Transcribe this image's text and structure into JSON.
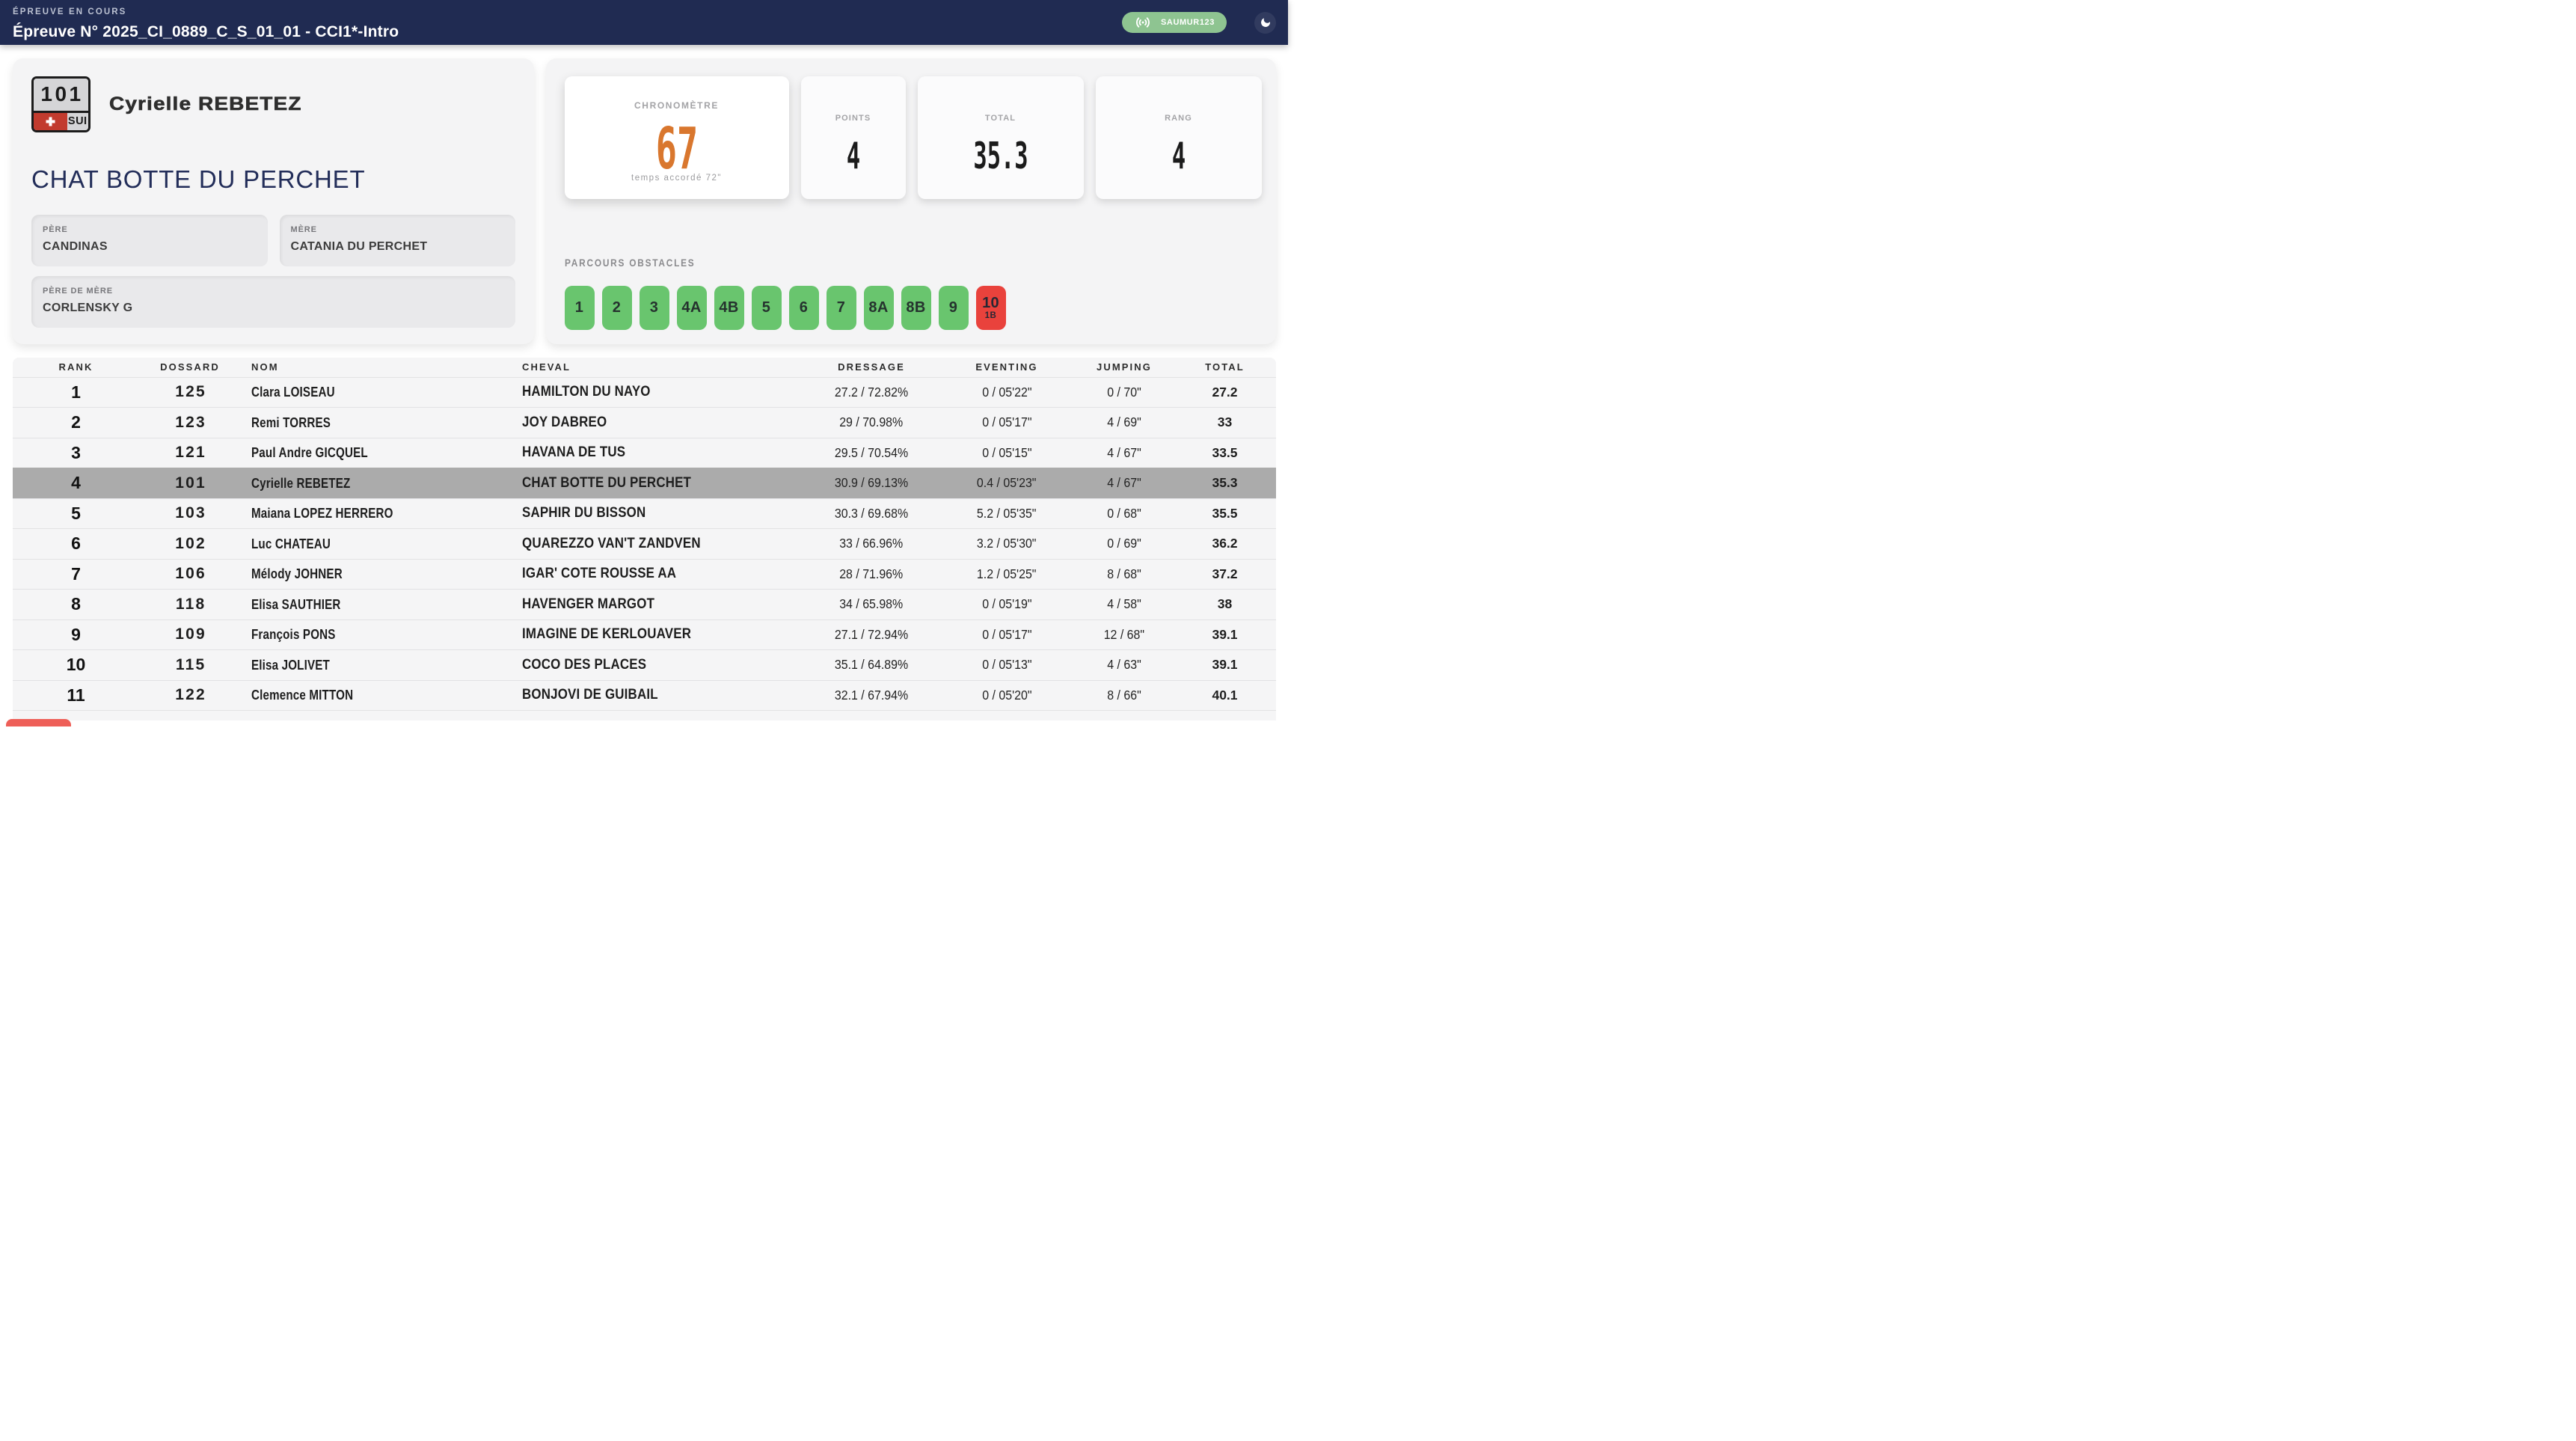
{
  "header": {
    "status_label": "ÉPREUVE EN COURS",
    "title": "Épreuve N° 2025_CI_0889_C_S_01_01 - CCI1*-Intro",
    "live_badge": "SAUMUR123"
  },
  "rider_card": {
    "bib": "101",
    "country": "SUI",
    "rider": "Cyrielle REBETEZ",
    "horse": "CHAT BOTTE DU PERCHET",
    "pedigree": [
      {
        "label": "PÈRE",
        "value": "CANDINAS"
      },
      {
        "label": "MÈRE",
        "value": "CATANIA DU PERCHET"
      },
      {
        "label": "PÈRE DE MÈRE",
        "value": "CORLENSKY G"
      }
    ]
  },
  "score_card": {
    "chrono": {
      "label": "CHRONOMÈTRE",
      "value": "67",
      "sub": "temps accordé 72\""
    },
    "stats": [
      {
        "label": "POINTS",
        "value": "4"
      },
      {
        "label": "TOTAL",
        "value": "35.3"
      },
      {
        "label": "RANG",
        "value": "4"
      }
    ],
    "obstacles_label": "PARCOURS OBSTACLES",
    "obstacles": [
      {
        "label": "1",
        "sub": "",
        "status": "clear"
      },
      {
        "label": "2",
        "sub": "",
        "status": "clear"
      },
      {
        "label": "3",
        "sub": "",
        "status": "clear"
      },
      {
        "label": "4A",
        "sub": "",
        "status": "clear"
      },
      {
        "label": "4B",
        "sub": "",
        "status": "clear"
      },
      {
        "label": "5",
        "sub": "",
        "status": "clear"
      },
      {
        "label": "6",
        "sub": "",
        "status": "clear"
      },
      {
        "label": "7",
        "sub": "",
        "status": "clear"
      },
      {
        "label": "8A",
        "sub": "",
        "status": "clear"
      },
      {
        "label": "8B",
        "sub": "",
        "status": "clear"
      },
      {
        "label": "9",
        "sub": "",
        "status": "clear"
      },
      {
        "label": "10",
        "sub": "1B",
        "status": "fault"
      }
    ],
    "colors": {
      "clear": "#69c56e",
      "fault": "#e9423c",
      "chrono_value": "#d9772e"
    }
  },
  "table": {
    "columns": [
      "RANK",
      "DOSSARD",
      "NOM",
      "CHEVAL",
      "DRESSAGE",
      "EVENTING",
      "JUMPING",
      "TOTAL"
    ],
    "rows": [
      {
        "rank": "1",
        "dossard": "125",
        "nom": "Clara LOISEAU",
        "cheval": "HAMILTON DU NAYO",
        "dressage": "27.2 / 72.82%",
        "eventing": "0 / 05'22\"",
        "jumping": "0 / 70\"",
        "total": "27.2",
        "highlight": false
      },
      {
        "rank": "2",
        "dossard": "123",
        "nom": "Remi TORRES",
        "cheval": "JOY DABREO",
        "dressage": "29 / 70.98%",
        "eventing": "0 / 05'17\"",
        "jumping": "4 / 69\"",
        "total": "33",
        "highlight": false
      },
      {
        "rank": "3",
        "dossard": "121",
        "nom": "Paul Andre GICQUEL",
        "cheval": "HAVANA DE TUS",
        "dressage": "29.5 / 70.54%",
        "eventing": "0 / 05'15\"",
        "jumping": "4 / 67\"",
        "total": "33.5",
        "highlight": false
      },
      {
        "rank": "4",
        "dossard": "101",
        "nom": "Cyrielle REBETEZ",
        "cheval": "CHAT BOTTE DU PERCHET",
        "dressage": "30.9 / 69.13%",
        "eventing": "0.4 / 05'23\"",
        "jumping": "4 / 67\"",
        "total": "35.3",
        "highlight": true
      },
      {
        "rank": "5",
        "dossard": "103",
        "nom": "Maiana LOPEZ HERRERO",
        "cheval": "SAPHIR DU BISSON",
        "dressage": "30.3 / 69.68%",
        "eventing": "5.2 / 05'35\"",
        "jumping": "0 / 68\"",
        "total": "35.5",
        "highlight": false
      },
      {
        "rank": "6",
        "dossard": "102",
        "nom": "Luc CHATEAU",
        "cheval": "QUAREZZO VAN'T ZANDVEN",
        "dressage": "33 / 66.96%",
        "eventing": "3.2 / 05'30\"",
        "jumping": "0 / 69\"",
        "total": "36.2",
        "highlight": false
      },
      {
        "rank": "7",
        "dossard": "106",
        "nom": "Mélody JOHNER",
        "cheval": "IGAR' COTE ROUSSE AA",
        "dressage": "28 / 71.96%",
        "eventing": "1.2 / 05'25\"",
        "jumping": "8 / 68\"",
        "total": "37.2",
        "highlight": false
      },
      {
        "rank": "8",
        "dossard": "118",
        "nom": "Elisa SAUTHIER",
        "cheval": "HAVENGER MARGOT",
        "dressage": "34 / 65.98%",
        "eventing": "0 / 05'19\"",
        "jumping": "4 / 58\"",
        "total": "38",
        "highlight": false
      },
      {
        "rank": "9",
        "dossard": "109",
        "nom": "François PONS",
        "cheval": "IMAGINE DE KERLOUAVER",
        "dressage": "27.1 / 72.94%",
        "eventing": "0 / 05'17\"",
        "jumping": "12 / 68\"",
        "total": "39.1",
        "highlight": false
      },
      {
        "rank": "10",
        "dossard": "115",
        "nom": "Elisa JOLIVET",
        "cheval": "COCO DES PLACES",
        "dressage": "35.1 / 64.89%",
        "eventing": "0 / 05'13\"",
        "jumping": "4 / 63\"",
        "total": "39.1",
        "highlight": false
      },
      {
        "rank": "11",
        "dossard": "122",
        "nom": "Clemence MITTON",
        "cheval": "BONJOVI DE GUIBAIL",
        "dressage": "32.1 / 67.94%",
        "eventing": "0 / 05'20\"",
        "jumping": "8 / 66\"",
        "total": "40.1",
        "highlight": false
      }
    ]
  }
}
